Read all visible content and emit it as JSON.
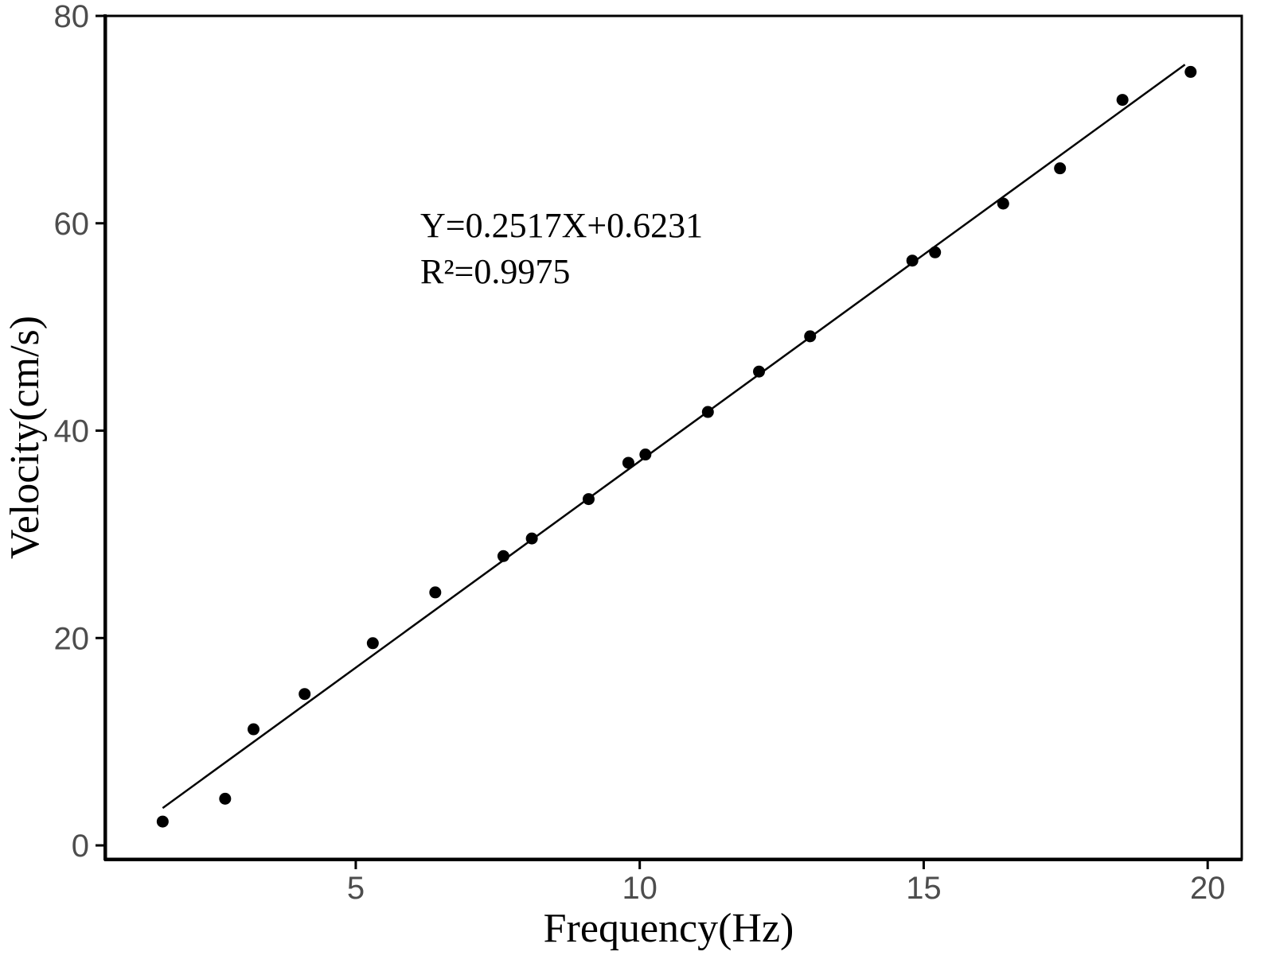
{
  "chart_data": {
    "type": "scatter",
    "xlabel": "Frequency(Hz)",
    "ylabel": "Velocity(cm/s)",
    "xlim": [
      0.6,
      20.6
    ],
    "ylim": [
      -1.3,
      80
    ],
    "x_ticks": [
      {
        "value": 5,
        "label": "5"
      },
      {
        "value": 10,
        "label": "10"
      },
      {
        "value": 15,
        "label": "15"
      },
      {
        "value": 20,
        "label": "20"
      }
    ],
    "y_ticks": [
      {
        "value": 0,
        "label": "0"
      },
      {
        "value": 20,
        "label": "20"
      },
      {
        "value": 40,
        "label": "40"
      },
      {
        "value": 60,
        "label": "60"
      },
      {
        "value": 80,
        "label": "80"
      }
    ],
    "grid": false,
    "series": [
      {
        "x": [
          1.6,
          2.7,
          3.2,
          4.1,
          5.3,
          6.4,
          7.6,
          8.1,
          9.1,
          9.8,
          10.1,
          11.2,
          12.1,
          13.0,
          14.8,
          15.2,
          16.4,
          17.4,
          18.5,
          19.7
        ],
        "y": [
          2.3,
          4.5,
          11.2,
          14.6,
          19.5,
          24.4,
          27.9,
          29.6,
          33.4,
          36.9,
          37.7,
          41.8,
          45.7,
          49.1,
          56.4,
          57.2,
          61.9,
          65.3,
          71.9,
          74.6
        ],
        "color": "#000000"
      }
    ],
    "fit_line": {
      "x": [
        1.6,
        19.6
      ],
      "y": [
        3.6,
        75.3
      ]
    },
    "annotations": [
      "Y=0.2517X+0.6231",
      "R²=0.9975"
    ]
  }
}
